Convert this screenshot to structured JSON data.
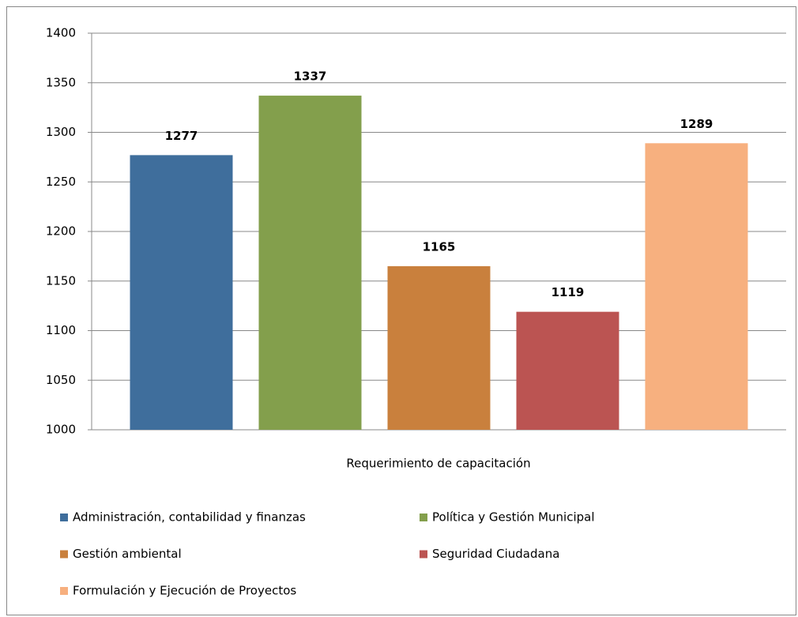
{
  "chart_data": {
    "type": "bar",
    "x_label": "Requerimiento de capacitación",
    "categories": [
      "Requerimiento de capacitación"
    ],
    "series": [
      {
        "name": "Administración, contabilidad y finanzas",
        "color": "#3f6e9c",
        "values": [
          1277
        ]
      },
      {
        "name": "Política y Gestión Municipal",
        "color": "#839f4c",
        "values": [
          1337
        ]
      },
      {
        "name": "Gestión ambiental",
        "color": "#c9803d",
        "values": [
          1165
        ]
      },
      {
        "name": "Seguridad Ciudadana",
        "color": "#bb5452",
        "values": [
          1119
        ]
      },
      {
        "name": "Formulación y Ejecución de Proyectos",
        "color": "#f7b07f",
        "values": [
          1289
        ]
      }
    ],
    "ylim": [
      1000,
      1400
    ],
    "yticks": [
      1000,
      1050,
      1100,
      1150,
      1200,
      1250,
      1300,
      1350,
      1400
    ],
    "grid": true,
    "legend": "bottom"
  }
}
